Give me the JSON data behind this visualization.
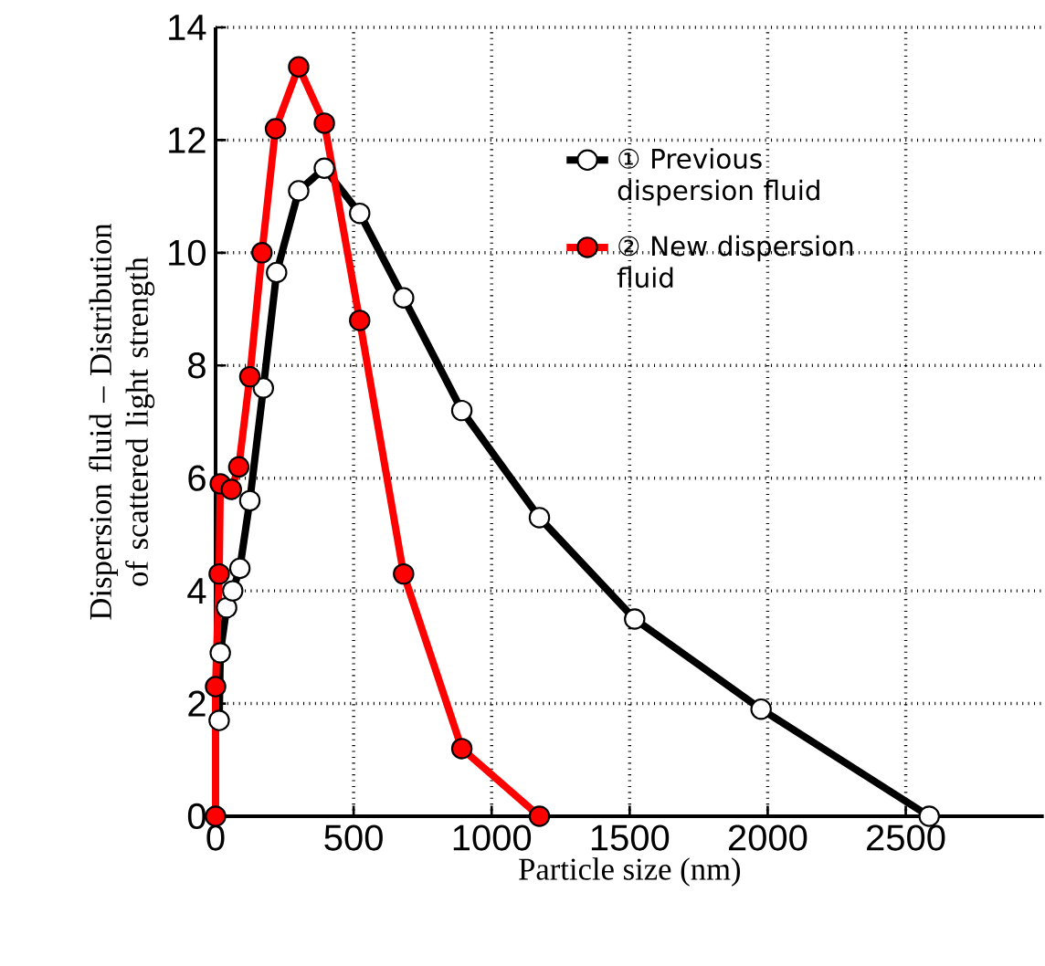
{
  "chart_data": {
    "type": "line",
    "xlabel": "Particle size (nm)",
    "ylabel": "Dispersion fluid – Distribution of scattered light strength",
    "xlim": [
      0,
      3000
    ],
    "xticks": [
      0,
      500,
      1000,
      1500,
      2000,
      2500
    ],
    "ylim": [
      0,
      14
    ],
    "yticks": [
      0,
      2,
      4,
      6,
      8,
      10,
      12,
      14
    ],
    "grid": true,
    "legend": "top right",
    "marker": "circle",
    "line_style": "solid",
    "series": [
      {
        "name": "① Previous dispersion fluid",
        "color": "#000000",
        "x": [
          13,
          17,
          40,
          62,
          88,
          124,
          173,
          221,
          301,
          394,
          522,
          681,
          892,
          1173,
          1518,
          1976,
          2585
        ],
        "values": [
          1.7,
          2.9,
          3.7,
          4.0,
          4.4,
          5.6,
          7.6,
          9.65,
          11.1,
          11.5,
          10.7,
          9.2,
          7.2,
          5.3,
          3.5,
          1.9,
          0
        ]
      },
      {
        "name": "② New dispersion fluid",
        "color": "#ff0000",
        "x": [
          0,
          0,
          13,
          17,
          57,
          84,
          124,
          168,
          217,
          301,
          394,
          522,
          681,
          892,
          1173
        ],
        "values": [
          0,
          2.3,
          4.3,
          5.9,
          5.8,
          6.2,
          7.8,
          10.0,
          12.2,
          13.3,
          12.3,
          8.8,
          4.3,
          1.2,
          0
        ]
      }
    ]
  }
}
